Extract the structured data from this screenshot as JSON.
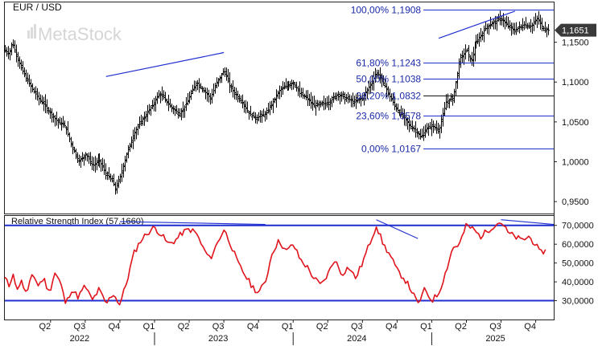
{
  "header": {
    "symbol": "EUR / USD",
    "watermark": "MetaStock"
  },
  "colors": {
    "price_bars": "#000000",
    "fib_lines": "#1f2fd0",
    "fib_text": "#1a2aa8",
    "trend_lines": "#1f2fd0",
    "rsi_line": "#e0141c",
    "rsi_bands": "#1f2fd0",
    "last_price_tag": "#3a3a3a",
    "frame": "#222222"
  },
  "chart_data": [
    {
      "type": "ohlc",
      "title": "EUR / USD",
      "price_axis": {
        "ticks": [
          "0,9500",
          "1,0000",
          "1,0500",
          "1,1000",
          "1,1500"
        ],
        "tick_values": [
          0.95,
          1.0,
          1.05,
          1.1,
          1.15
        ],
        "ylim": [
          0.935,
          1.2
        ],
        "last_price": "1,1651",
        "last_value": 1.1651
      },
      "x_axis": {
        "quarters": [
          "Q2",
          "Q3",
          "Q4",
          "Q1",
          "Q2",
          "Q3",
          "Q4",
          "Q1",
          "Q2",
          "Q3",
          "Q4",
          "Q1",
          "Q2",
          "Q3",
          "Q4"
        ],
        "quarter_pos": [
          0.25,
          0.5,
          0.75,
          1.0,
          1.25,
          1.5,
          1.75,
          2.0,
          2.25,
          2.5,
          2.75,
          3.0,
          3.25,
          3.5,
          3.75
        ],
        "years": [
          "2022",
          "2023",
          "2024",
          "2025"
        ],
        "year_pos": [
          0.5,
          1.5,
          2.5,
          3.5
        ],
        "xlim": [
          -0.08,
          3.88
        ]
      },
      "price_path": [
        [
          -0.08,
          1.14
        ],
        [
          -0.05,
          1.135
        ],
        [
          -0.03,
          1.15
        ],
        [
          0.0,
          1.135
        ],
        [
          0.03,
          1.12
        ],
        [
          0.07,
          1.105
        ],
        [
          0.12,
          1.09
        ],
        [
          0.16,
          1.08
        ],
        [
          0.2,
          1.072
        ],
        [
          0.25,
          1.06
        ],
        [
          0.3,
          1.05
        ],
        [
          0.35,
          1.045
        ],
        [
          0.4,
          1.02
        ],
        [
          0.45,
          1.0
        ],
        [
          0.5,
          1.01
        ],
        [
          0.55,
          0.995
        ],
        [
          0.6,
          1.002
        ],
        [
          0.65,
          0.985
        ],
        [
          0.7,
          0.975
        ],
        [
          0.72,
          0.965
        ],
        [
          0.75,
          0.98
        ],
        [
          0.8,
          1.01
        ],
        [
          0.85,
          1.035
        ],
        [
          0.9,
          1.05
        ],
        [
          0.95,
          1.062
        ],
        [
          1.0,
          1.075
        ],
        [
          1.03,
          1.085
        ],
        [
          1.07,
          1.08
        ],
        [
          1.1,
          1.072
        ],
        [
          1.14,
          1.065
        ],
        [
          1.18,
          1.06
        ],
        [
          1.22,
          1.07
        ],
        [
          1.26,
          1.085
        ],
        [
          1.3,
          1.1
        ],
        [
          1.35,
          1.09
        ],
        [
          1.4,
          1.08
        ],
        [
          1.45,
          1.1
        ],
        [
          1.5,
          1.115
        ],
        [
          1.54,
          1.095
        ],
        [
          1.58,
          1.085
        ],
        [
          1.63,
          1.075
        ],
        [
          1.68,
          1.06
        ],
        [
          1.73,
          1.055
        ],
        [
          1.8,
          1.06
        ],
        [
          1.85,
          1.075
        ],
        [
          1.9,
          1.09
        ],
        [
          1.95,
          1.095
        ],
        [
          2.0,
          1.1
        ],
        [
          2.05,
          1.085
        ],
        [
          2.1,
          1.08
        ],
        [
          2.15,
          1.07
        ],
        [
          2.2,
          1.072
        ],
        [
          2.26,
          1.075
        ],
        [
          2.32,
          1.085
        ],
        [
          2.38,
          1.08
        ],
        [
          2.44,
          1.075
        ],
        [
          2.5,
          1.08
        ],
        [
          2.55,
          1.095
        ],
        [
          2.6,
          1.112
        ],
        [
          2.62,
          1.108
        ],
        [
          2.66,
          1.095
        ],
        [
          2.7,
          1.08
        ],
        [
          2.75,
          1.065
        ],
        [
          2.8,
          1.055
        ],
        [
          2.84,
          1.045
        ],
        [
          2.88,
          1.04
        ],
        [
          2.92,
          1.03
        ],
        [
          2.95,
          1.04
        ],
        [
          3.0,
          1.045
        ],
        [
          3.05,
          1.04
        ],
        [
          3.1,
          1.075
        ],
        [
          3.15,
          1.08
        ],
        [
          3.2,
          1.13
        ],
        [
          3.25,
          1.14
        ],
        [
          3.28,
          1.125
        ],
        [
          3.32,
          1.15
        ],
        [
          3.36,
          1.16
        ],
        [
          3.4,
          1.17
        ],
        [
          3.45,
          1.175
        ],
        [
          3.5,
          1.18
        ],
        [
          3.55,
          1.17
        ],
        [
          3.6,
          1.165
        ],
        [
          3.66,
          1.172
        ],
        [
          3.72,
          1.17
        ],
        [
          3.76,
          1.18
        ],
        [
          3.8,
          1.168
        ],
        [
          3.84,
          1.165
        ]
      ],
      "fibonacci": [
        {
          "label": "100,00% 1,1908",
          "value": 1.1908
        },
        {
          "label": "61,80% 1,1243",
          "value": 1.1243
        },
        {
          "label": "50,00% 1,1038",
          "value": 1.1038
        },
        {
          "label": "38,20% 1,0832",
          "value": 1.0832
        },
        {
          "label": "23,60% 1,0578",
          "value": 1.0578
        },
        {
          "label": "0,00% 1,0167",
          "value": 1.0167
        }
      ],
      "price_trend_lines": [
        [
          [
            0.65,
            1.107
          ],
          [
            1.5,
            1.137
          ]
        ],
        [
          [
            3.05,
            1.155
          ],
          [
            3.6,
            1.189
          ]
        ]
      ]
    },
    {
      "type": "line",
      "title": "Relative Strength Index (57,1660)",
      "ticks": [
        "30,0000",
        "40,0000",
        "50,0000",
        "60,0000",
        "70,0000"
      ],
      "tick_values": [
        30,
        40,
        50,
        60,
        70
      ],
      "ylim": [
        20,
        75
      ],
      "bands": [
        30,
        70
      ],
      "last_value": 57.166,
      "rsi_path": [
        [
          -0.08,
          42
        ],
        [
          -0.05,
          38
        ],
        [
          -0.02,
          45
        ],
        [
          0.0,
          36
        ],
        [
          0.04,
          40
        ],
        [
          0.08,
          33
        ],
        [
          0.12,
          45
        ],
        [
          0.16,
          38
        ],
        [
          0.2,
          42
        ],
        [
          0.24,
          34
        ],
        [
          0.28,
          45
        ],
        [
          0.32,
          40
        ],
        [
          0.36,
          28
        ],
        [
          0.4,
          36
        ],
        [
          0.45,
          32
        ],
        [
          0.5,
          38
        ],
        [
          0.55,
          30
        ],
        [
          0.6,
          36
        ],
        [
          0.65,
          28
        ],
        [
          0.7,
          34
        ],
        [
          0.75,
          28
        ],
        [
          0.8,
          40
        ],
        [
          0.85,
          55
        ],
        [
          0.9,
          62
        ],
        [
          0.95,
          66
        ],
        [
          1.0,
          69
        ],
        [
          1.05,
          65
        ],
        [
          1.1,
          60
        ],
        [
          1.15,
          62
        ],
        [
          1.2,
          66
        ],
        [
          1.25,
          68
        ],
        [
          1.3,
          66
        ],
        [
          1.35,
          58
        ],
        [
          1.4,
          52
        ],
        [
          1.45,
          60
        ],
        [
          1.5,
          68
        ],
        [
          1.55,
          60
        ],
        [
          1.6,
          50
        ],
        [
          1.65,
          44
        ],
        [
          1.7,
          38
        ],
        [
          1.75,
          34
        ],
        [
          1.8,
          40
        ],
        [
          1.85,
          56
        ],
        [
          1.9,
          62
        ],
        [
          1.95,
          56
        ],
        [
          2.0,
          60
        ],
        [
          2.05,
          52
        ],
        [
          2.1,
          48
        ],
        [
          2.15,
          42
        ],
        [
          2.2,
          38
        ],
        [
          2.25,
          44
        ],
        [
          2.3,
          52
        ],
        [
          2.35,
          44
        ],
        [
          2.4,
          48
        ],
        [
          2.45,
          42
        ],
        [
          2.5,
          50
        ],
        [
          2.55,
          60
        ],
        [
          2.6,
          70
        ],
        [
          2.65,
          60
        ],
        [
          2.7,
          54
        ],
        [
          2.75,
          46
        ],
        [
          2.8,
          42
        ],
        [
          2.85,
          36
        ],
        [
          2.9,
          28
        ],
        [
          2.95,
          36
        ],
        [
          3.0,
          30
        ],
        [
          3.05,
          34
        ],
        [
          3.1,
          45
        ],
        [
          3.15,
          58
        ],
        [
          3.2,
          60
        ],
        [
          3.25,
          70
        ],
        [
          3.3,
          68
        ],
        [
          3.35,
          64
        ],
        [
          3.4,
          67
        ],
        [
          3.45,
          70
        ],
        [
          3.5,
          72
        ],
        [
          3.55,
          66
        ],
        [
          3.6,
          64
        ],
        [
          3.65,
          62
        ],
        [
          3.7,
          64
        ],
        [
          3.75,
          60
        ],
        [
          3.78,
          55
        ],
        [
          3.82,
          57
        ]
      ],
      "rsi_trend_lines": [
        [
          [
            0.75,
            72
          ],
          [
            1.8,
            70.5
          ]
        ],
        [
          [
            2.6,
            73
          ],
          [
            2.9,
            63
          ]
        ],
        [
          [
            3.5,
            73
          ],
          [
            3.88,
            70.5
          ]
        ]
      ]
    }
  ]
}
